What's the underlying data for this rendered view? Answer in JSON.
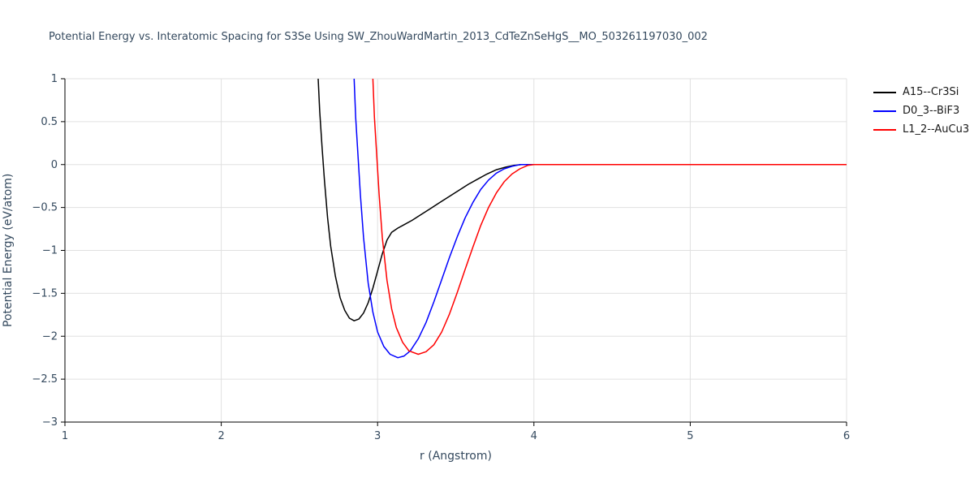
{
  "chart_data": {
    "type": "line",
    "title": "Potential Energy vs. Interatomic Spacing for S3Se Using SW_ZhouWardMartin_2013_CdTeZnSeHgS__MO_503261197030_002",
    "xlabel": "r (Angstrom)",
    "ylabel": "Potential Energy (eV/atom)",
    "xlim": [
      1,
      6
    ],
    "ylim": [
      -3,
      1
    ],
    "grid": true,
    "legend_position": "top-right-outside",
    "colors": {
      "text": "#34495e",
      "legend_text": "#1a1a1a",
      "grid": "#e0e0e0",
      "axis": "#000000"
    },
    "xticks": [
      {
        "v": 1,
        "label": "1"
      },
      {
        "v": 2,
        "label": "2"
      },
      {
        "v": 3,
        "label": "3"
      },
      {
        "v": 4,
        "label": "4"
      },
      {
        "v": 5,
        "label": "5"
      },
      {
        "v": 6,
        "label": "6"
      }
    ],
    "yticks": [
      {
        "v": 1,
        "label": "1"
      },
      {
        "v": 0.5,
        "label": "0.5"
      },
      {
        "v": 0,
        "label": "0"
      },
      {
        "v": -0.5,
        "label": "−0.5"
      },
      {
        "v": -1,
        "label": "−1"
      },
      {
        "v": -1.5,
        "label": "−1.5"
      },
      {
        "v": -2,
        "label": "−2"
      },
      {
        "v": -2.5,
        "label": "−2.5"
      },
      {
        "v": -3,
        "label": "−3"
      }
    ],
    "series": [
      {
        "id": "a15-cr3si",
        "name": "A15--Cr3Si",
        "color": "#000000",
        "min_point": [
          2.85,
          -1.82
        ],
        "points": [
          [
            2.6,
            3.0
          ],
          [
            2.62,
            1.0
          ],
          [
            2.63,
            0.62
          ],
          [
            2.645,
            0.2
          ],
          [
            2.66,
            -0.18
          ],
          [
            2.68,
            -0.62
          ],
          [
            2.7,
            -0.95
          ],
          [
            2.73,
            -1.3
          ],
          [
            2.76,
            -1.55
          ],
          [
            2.79,
            -1.7
          ],
          [
            2.82,
            -1.79
          ],
          [
            2.85,
            -1.82
          ],
          [
            2.88,
            -1.8
          ],
          [
            2.91,
            -1.73
          ],
          [
            2.94,
            -1.61
          ],
          [
            2.97,
            -1.44
          ],
          [
            3.0,
            -1.24
          ],
          [
            3.03,
            -1.04
          ],
          [
            3.06,
            -0.88
          ],
          [
            3.09,
            -0.79
          ],
          [
            3.13,
            -0.74
          ],
          [
            3.17,
            -0.7
          ],
          [
            3.22,
            -0.65
          ],
          [
            3.28,
            -0.58
          ],
          [
            3.34,
            -0.51
          ],
          [
            3.4,
            -0.44
          ],
          [
            3.46,
            -0.37
          ],
          [
            3.52,
            -0.3
          ],
          [
            3.58,
            -0.23
          ],
          [
            3.64,
            -0.17
          ],
          [
            3.7,
            -0.11
          ],
          [
            3.76,
            -0.06
          ],
          [
            3.82,
            -0.03
          ],
          [
            3.87,
            -0.01
          ],
          [
            3.92,
            0.0
          ],
          [
            4.0,
            0.0
          ],
          [
            6.0,
            0.0
          ]
        ]
      },
      {
        "id": "d03-bif3",
        "name": "D0_3--BiF3",
        "color": "#0000ff",
        "min_point": [
          3.13,
          -2.25
        ],
        "points": [
          [
            2.84,
            3.0
          ],
          [
            2.85,
            1.0
          ],
          [
            2.86,
            0.55
          ],
          [
            2.875,
            0.1
          ],
          [
            2.89,
            -0.35
          ],
          [
            2.91,
            -0.85
          ],
          [
            2.94,
            -1.38
          ],
          [
            2.97,
            -1.72
          ],
          [
            3.0,
            -1.95
          ],
          [
            3.04,
            -2.12
          ],
          [
            3.08,
            -2.21
          ],
          [
            3.13,
            -2.25
          ],
          [
            3.17,
            -2.23
          ],
          [
            3.21,
            -2.17
          ],
          [
            3.26,
            -2.03
          ],
          [
            3.31,
            -1.84
          ],
          [
            3.36,
            -1.6
          ],
          [
            3.41,
            -1.34
          ],
          [
            3.46,
            -1.08
          ],
          [
            3.51,
            -0.84
          ],
          [
            3.56,
            -0.62
          ],
          [
            3.61,
            -0.44
          ],
          [
            3.66,
            -0.29
          ],
          [
            3.71,
            -0.18
          ],
          [
            3.76,
            -0.1
          ],
          [
            3.81,
            -0.05
          ],
          [
            3.86,
            -0.02
          ],
          [
            3.91,
            0.0
          ],
          [
            4.0,
            0.0
          ],
          [
            6.0,
            0.0
          ]
        ]
      },
      {
        "id": "l12-aucu3",
        "name": "L1_2--AuCu3",
        "color": "#ff0000",
        "min_point": [
          3.26,
          -2.21
        ],
        "points": [
          [
            2.96,
            3.0
          ],
          [
            2.97,
            1.0
          ],
          [
            2.98,
            0.55
          ],
          [
            2.995,
            0.1
          ],
          [
            3.01,
            -0.35
          ],
          [
            3.03,
            -0.85
          ],
          [
            3.06,
            -1.35
          ],
          [
            3.09,
            -1.68
          ],
          [
            3.12,
            -1.9
          ],
          [
            3.16,
            -2.07
          ],
          [
            3.2,
            -2.17
          ],
          [
            3.26,
            -2.21
          ],
          [
            3.31,
            -2.18
          ],
          [
            3.36,
            -2.1
          ],
          [
            3.41,
            -1.95
          ],
          [
            3.46,
            -1.74
          ],
          [
            3.51,
            -1.49
          ],
          [
            3.56,
            -1.22
          ],
          [
            3.61,
            -0.96
          ],
          [
            3.66,
            -0.71
          ],
          [
            3.71,
            -0.5
          ],
          [
            3.76,
            -0.33
          ],
          [
            3.81,
            -0.2
          ],
          [
            3.86,
            -0.11
          ],
          [
            3.91,
            -0.05
          ],
          [
            3.96,
            -0.01
          ],
          [
            4.0,
            0.0
          ],
          [
            6.0,
            0.0
          ]
        ]
      }
    ]
  }
}
